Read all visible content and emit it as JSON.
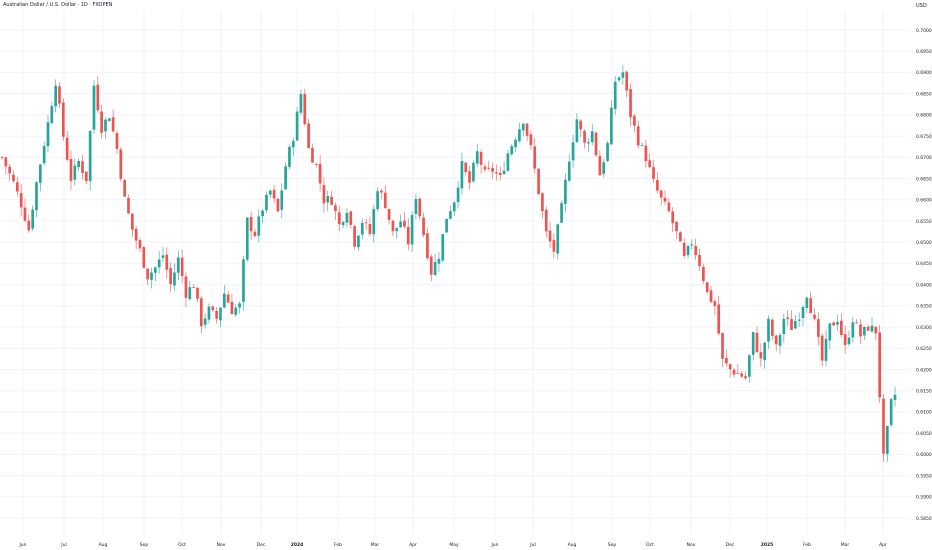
{
  "header": {
    "title": "Australian Dollar / U.S. Dollar · 1D · FXOPEN",
    "currency": "USD"
  },
  "colors": {
    "up": "#26a69a",
    "down": "#ef5350",
    "grid": "#f0f3fa",
    "axis_text": "#131722",
    "background": "#ffffff"
  },
  "chart_data": {
    "type": "candlestick",
    "symbol": "AUDUSD",
    "grid": true,
    "y_axis": {
      "side": "right",
      "ylim": [
        0.585,
        0.7
      ],
      "ticks": [
        "0.70000",
        "0.69500",
        "0.69000",
        "0.68500",
        "0.68000",
        "0.67500",
        "0.67000",
        "0.66500",
        "0.66000",
        "0.65500",
        "0.65000",
        "0.64500",
        "0.64000",
        "0.63500",
        "0.63000",
        "0.62500",
        "0.62000",
        "0.61500",
        "0.61000",
        "0.60500",
        "0.60000",
        "0.59500",
        "0.59000",
        "0.58500"
      ]
    },
    "x_axis": {
      "labels": [
        "Jun",
        "Jul",
        "Aug",
        "Sep",
        "Oct",
        "Nov",
        "Dec",
        "2024",
        "Feb",
        "Mar",
        "Apr",
        "May",
        "Jun",
        "Jul",
        "Aug",
        "Sep",
        "Oct",
        "Nov",
        "Dec",
        "2025",
        "Feb",
        "Mar",
        "Apr"
      ]
    },
    "series": {
      "anchors": [
        [
          0,
          0.67
        ],
        [
          3,
          0.664
        ],
        [
          5,
          0.659
        ],
        [
          7,
          0.653
        ],
        [
          9,
          0.664
        ],
        [
          12,
          0.678
        ],
        [
          14,
          0.688
        ],
        [
          16,
          0.675
        ],
        [
          18,
          0.665
        ],
        [
          20,
          0.669
        ],
        [
          22,
          0.665
        ],
        [
          24,
          0.687
        ],
        [
          26,
          0.677
        ],
        [
          28,
          0.68
        ],
        [
          30,
          0.672
        ],
        [
          32,
          0.66
        ],
        [
          34,
          0.653
        ],
        [
          36,
          0.648
        ],
        [
          38,
          0.642
        ],
        [
          40,
          0.644
        ],
        [
          42,
          0.647
        ],
        [
          44,
          0.64
        ],
        [
          46,
          0.646
        ],
        [
          48,
          0.638
        ],
        [
          50,
          0.64
        ],
        [
          52,
          0.631
        ],
        [
          54,
          0.634
        ],
        [
          56,
          0.632
        ],
        [
          58,
          0.638
        ],
        [
          60,
          0.634
        ],
        [
          62,
          0.635
        ],
        [
          64,
          0.655
        ],
        [
          66,
          0.652
        ],
        [
          68,
          0.658
        ],
        [
          70,
          0.662
        ],
        [
          72,
          0.657
        ],
        [
          74,
          0.668
        ],
        [
          76,
          0.675
        ],
        [
          78,
          0.685
        ],
        [
          80,
          0.672
        ],
        [
          82,
          0.668
        ],
        [
          84,
          0.66
        ],
        [
          86,
          0.66
        ],
        [
          88,
          0.654
        ],
        [
          90,
          0.658
        ],
        [
          92,
          0.65
        ],
        [
          94,
          0.655
        ],
        [
          96,
          0.652
        ],
        [
          98,
          0.663
        ],
        [
          100,
          0.659
        ],
        [
          102,
          0.652
        ],
        [
          104,
          0.655
        ],
        [
          106,
          0.65
        ],
        [
          108,
          0.661
        ],
        [
          110,
          0.652
        ],
        [
          112,
          0.643
        ],
        [
          114,
          0.647
        ],
        [
          116,
          0.656
        ],
        [
          118,
          0.66
        ],
        [
          120,
          0.668
        ],
        [
          122,
          0.664
        ],
        [
          124,
          0.671
        ],
        [
          126,
          0.666
        ],
        [
          128,
          0.667
        ],
        [
          130,
          0.665
        ],
        [
          132,
          0.671
        ],
        [
          134,
          0.675
        ],
        [
          136,
          0.679
        ],
        [
          138,
          0.672
        ],
        [
          140,
          0.662
        ],
        [
          142,
          0.652
        ],
        [
          144,
          0.648
        ],
        [
          146,
          0.658
        ],
        [
          148,
          0.67
        ],
        [
          150,
          0.679
        ],
        [
          152,
          0.673
        ],
        [
          154,
          0.676
        ],
        [
          156,
          0.666
        ],
        [
          158,
          0.673
        ],
        [
          160,
          0.688
        ],
        [
          162,
          0.69
        ],
        [
          164,
          0.68
        ],
        [
          166,
          0.674
        ],
        [
          168,
          0.67
        ],
        [
          170,
          0.664
        ],
        [
          172,
          0.66
        ],
        [
          174,
          0.657
        ],
        [
          176,
          0.652
        ],
        [
          178,
          0.646
        ],
        [
          180,
          0.65
        ],
        [
          182,
          0.645
        ],
        [
          184,
          0.638
        ],
        [
          186,
          0.635
        ],
        [
          188,
          0.622
        ],
        [
          190,
          0.62
        ],
        [
          192,
          0.619
        ],
        [
          194,
          0.618
        ],
        [
          196,
          0.628
        ],
        [
          198,
          0.622
        ],
        [
          200,
          0.631
        ],
        [
          202,
          0.625
        ],
        [
          204,
          0.632
        ],
        [
          206,
          0.63
        ],
        [
          208,
          0.633
        ],
        [
          210,
          0.638
        ],
        [
          212,
          0.631
        ],
        [
          214,
          0.622
        ],
        [
          216,
          0.63
        ],
        [
          218,
          0.632
        ],
        [
          220,
          0.625
        ],
        [
          222,
          0.632
        ],
        [
          224,
          0.628
        ],
        [
          226,
          0.63
        ],
        [
          228,
          0.629
        ],
        [
          230,
          0.599
        ],
        [
          232,
          0.612
        ],
        [
          233,
          0.614
        ]
      ]
    }
  }
}
